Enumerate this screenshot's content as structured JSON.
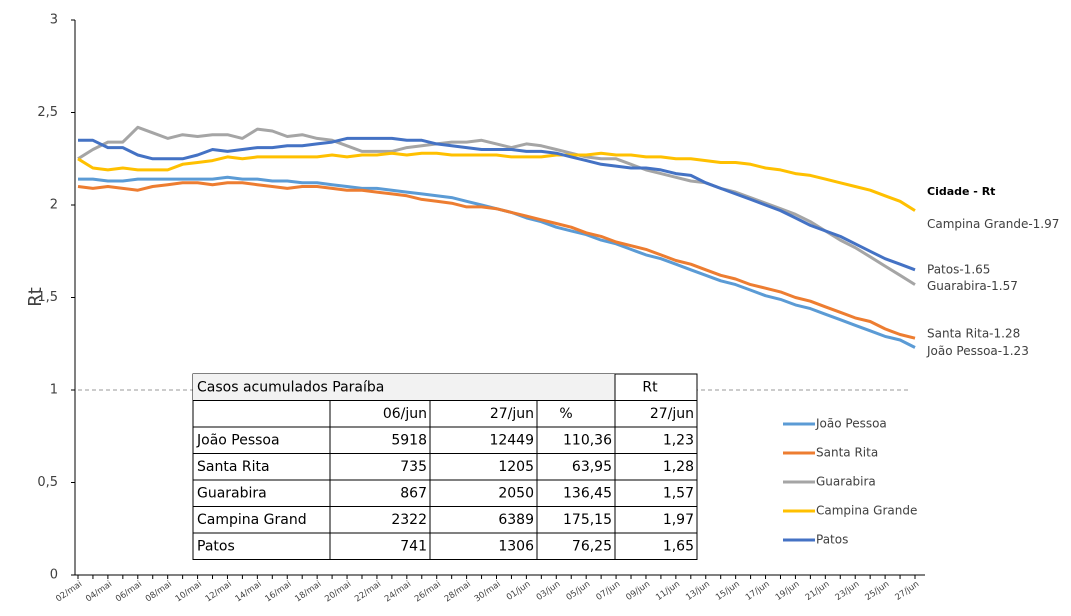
{
  "chart_data": {
    "type": "line",
    "y_label": "Rt",
    "categories": [
      "02/mai",
      null,
      "04/mai",
      null,
      "06/mai",
      null,
      "08/mai",
      null,
      "10/mai",
      null,
      "12/mai",
      null,
      "14/mai",
      null,
      "16/mai",
      null,
      "18/mai",
      null,
      "20/mai",
      null,
      "22/mai",
      null,
      "24/mai",
      null,
      "26/mai",
      null,
      "28/mai",
      null,
      "30/mai",
      null,
      "01/jun",
      null,
      "03/jun",
      null,
      "05/jun",
      null,
      "07/jun",
      null,
      "09/jun",
      null,
      "11/jun",
      null,
      "13/jun",
      null,
      "15/jun",
      null,
      "17/jun",
      null,
      "19/jun",
      null,
      "21/jun",
      null,
      "23/jun",
      null,
      "25/jun",
      null,
      "27/jun"
    ],
    "ylim": [
      0,
      3
    ],
    "yticks": [
      0,
      {
        "value": 0.5,
        "label": "0,5"
      },
      1,
      {
        "value": 1.5,
        "label": "1,5"
      },
      2,
      {
        "value": 2.5,
        "label": "2,5"
      },
      3
    ],
    "reference_line": 1,
    "series": [
      {
        "name": "João Pessoa",
        "color": "#5b9bd5",
        "values": [
          2.14,
          2.14,
          2.13,
          2.13,
          2.14,
          2.14,
          2.14,
          2.14,
          2.14,
          2.14,
          2.15,
          2.14,
          2.14,
          2.13,
          2.13,
          2.12,
          2.12,
          2.11,
          2.1,
          2.09,
          2.09,
          2.08,
          2.07,
          2.06,
          2.05,
          2.04,
          2.02,
          2.0,
          1.98,
          1.96,
          1.93,
          1.91,
          1.88,
          1.86,
          1.84,
          1.81,
          1.79,
          1.76,
          1.73,
          1.71,
          1.68,
          1.65,
          1.62,
          1.59,
          1.57,
          1.54,
          1.51,
          1.49,
          1.46,
          1.44,
          1.41,
          1.38,
          1.35,
          1.32,
          1.29,
          1.27,
          1.23
        ]
      },
      {
        "name": "Santa Rita",
        "color": "#ed7d31",
        "values": [
          2.1,
          2.09,
          2.1,
          2.09,
          2.08,
          2.1,
          2.11,
          2.12,
          2.12,
          2.11,
          2.12,
          2.12,
          2.11,
          2.1,
          2.09,
          2.1,
          2.1,
          2.09,
          2.08,
          2.08,
          2.07,
          2.06,
          2.05,
          2.03,
          2.02,
          2.01,
          1.99,
          1.99,
          1.98,
          1.96,
          1.94,
          1.92,
          1.9,
          1.88,
          1.85,
          1.83,
          1.8,
          1.78,
          1.76,
          1.73,
          1.7,
          1.68,
          1.65,
          1.62,
          1.6,
          1.57,
          1.55,
          1.53,
          1.5,
          1.48,
          1.45,
          1.42,
          1.39,
          1.37,
          1.33,
          1.3,
          1.28
        ]
      },
      {
        "name": "Guarabira",
        "color": "#a5a5a5",
        "values": [
          2.25,
          2.3,
          2.34,
          2.34,
          2.42,
          2.39,
          2.36,
          2.38,
          2.37,
          2.38,
          2.38,
          2.36,
          2.41,
          2.4,
          2.37,
          2.38,
          2.36,
          2.35,
          2.32,
          2.29,
          2.29,
          2.29,
          2.31,
          2.32,
          2.33,
          2.34,
          2.34,
          2.35,
          2.33,
          2.31,
          2.33,
          2.32,
          2.3,
          2.28,
          2.26,
          2.25,
          2.25,
          2.22,
          2.19,
          2.17,
          2.15,
          2.13,
          2.12,
          2.09,
          2.07,
          2.04,
          2.01,
          1.98,
          1.95,
          1.91,
          1.86,
          1.81,
          1.77,
          1.72,
          1.67,
          1.62,
          1.57
        ]
      },
      {
        "name": "Campina Grande",
        "color": "#ffc000",
        "values": [
          2.25,
          2.2,
          2.19,
          2.2,
          2.19,
          2.19,
          2.19,
          2.22,
          2.23,
          2.24,
          2.26,
          2.25,
          2.26,
          2.26,
          2.26,
          2.26,
          2.26,
          2.27,
          2.26,
          2.27,
          2.27,
          2.28,
          2.27,
          2.28,
          2.28,
          2.27,
          2.27,
          2.27,
          2.27,
          2.26,
          2.26,
          2.26,
          2.27,
          2.27,
          2.27,
          2.28,
          2.27,
          2.27,
          2.26,
          2.26,
          2.25,
          2.25,
          2.24,
          2.23,
          2.23,
          2.22,
          2.2,
          2.19,
          2.17,
          2.16,
          2.14,
          2.12,
          2.1,
          2.08,
          2.05,
          2.02,
          1.97
        ]
      },
      {
        "name": "Patos",
        "color": "#4472c4",
        "values": [
          2.35,
          2.35,
          2.31,
          2.31,
          2.27,
          2.25,
          2.25,
          2.25,
          2.27,
          2.3,
          2.29,
          2.3,
          2.31,
          2.31,
          2.32,
          2.32,
          2.33,
          2.34,
          2.36,
          2.36,
          2.36,
          2.36,
          2.35,
          2.35,
          2.33,
          2.32,
          2.31,
          2.3,
          2.3,
          2.3,
          2.29,
          2.29,
          2.28,
          2.26,
          2.24,
          2.22,
          2.21,
          2.2,
          2.2,
          2.19,
          2.17,
          2.16,
          2.12,
          2.09,
          2.06,
          2.03,
          2.0,
          1.97,
          1.93,
          1.89,
          1.86,
          1.83,
          1.79,
          1.75,
          1.71,
          1.68,
          1.65
        ]
      }
    ],
    "end_labels_title": "Cidade  - Rt",
    "end_labels": [
      "João Pessoa-1.23",
      "Santa Rita-1.28",
      "Guarabira-1.57",
      "Campina Grande-1.97",
      "Patos-1.65"
    ],
    "table": {
      "title": "Casos acumulados Paraíba",
      "rt_title": "Rt",
      "columns": [
        "06/jun",
        "27/jun",
        "%",
        "27/jun"
      ],
      "rows": [
        [
          "João Pessoa",
          "5918",
          "12449",
          "110,36",
          "1,23"
        ],
        [
          "Santa Rita",
          "735",
          "1205",
          "63,95",
          "1,28"
        ],
        [
          "Guarabira",
          "867",
          "2050",
          "136,45",
          "1,57"
        ],
        [
          "Campina Grand",
          "2322",
          "6389",
          "175,15",
          "1,97"
        ],
        [
          "Patos",
          "741",
          "1306",
          "76,25",
          "1,65"
        ]
      ]
    }
  }
}
